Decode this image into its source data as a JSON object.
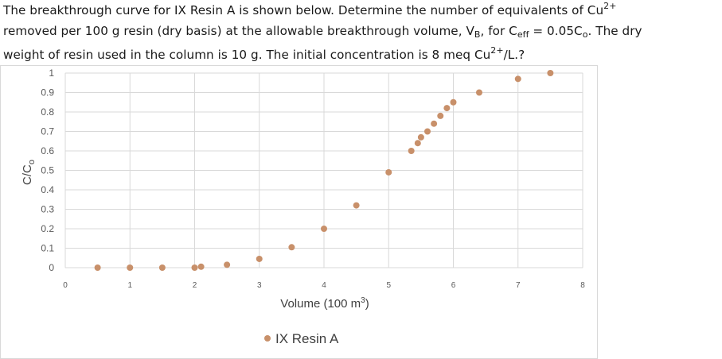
{
  "question": {
    "l1a": "The breakthrough curve for IX Resin A is shown below. Determine the number of equivalents of Cu",
    "l1sup": "2+",
    "l2a": "removed per 100 g resin (dry basis) at the allowable breakthrough volume, V",
    "l2sub1": "B",
    "l2b": ", for C",
    "l2sub2": "eff",
    "l2c": " = 0.05C",
    "l2sub3": "o",
    "l2d": ". The dry",
    "l3a": "weight of resin used in the column is 10 g. The initial concentration is 8 meq Cu",
    "l3sup": "2+",
    "l3b": "/L.?"
  },
  "chart_data": {
    "type": "scatter",
    "xlabel": "Volume (100 m",
    "xlabel_sup": "3",
    "xlabel_end": ")",
    "ylabel": "C/C",
    "ylabel_sub": "o",
    "xlim": [
      0,
      8
    ],
    "ylim": [
      0,
      1
    ],
    "xticks": [
      "0",
      "1",
      "2",
      "3",
      "4",
      "5",
      "6",
      "7",
      "8"
    ],
    "yticks": [
      "0",
      "0.1",
      "0.2",
      "0.3",
      "0.4",
      "0.5",
      "0.6",
      "0.7",
      "0.8",
      "0.9",
      "1"
    ],
    "grid": true,
    "legend": "bottom",
    "series": [
      {
        "name": "IX Resin A",
        "color": "#c8906a",
        "x": [
          0.5,
          1,
          1.5,
          2,
          2.1,
          2.5,
          3,
          3.5,
          4,
          4.5,
          5,
          5.35,
          5.45,
          5.5,
          5.6,
          5.7,
          5.8,
          5.9,
          6,
          6.4,
          7,
          7.5
        ],
        "y": [
          0,
          0,
          0,
          0,
          0.005,
          0.015,
          0.045,
          0.105,
          0.2,
          0.32,
          0.49,
          0.6,
          0.64,
          0.67,
          0.7,
          0.74,
          0.78,
          0.82,
          0.85,
          0.9,
          0.97,
          1.0
        ]
      }
    ]
  }
}
